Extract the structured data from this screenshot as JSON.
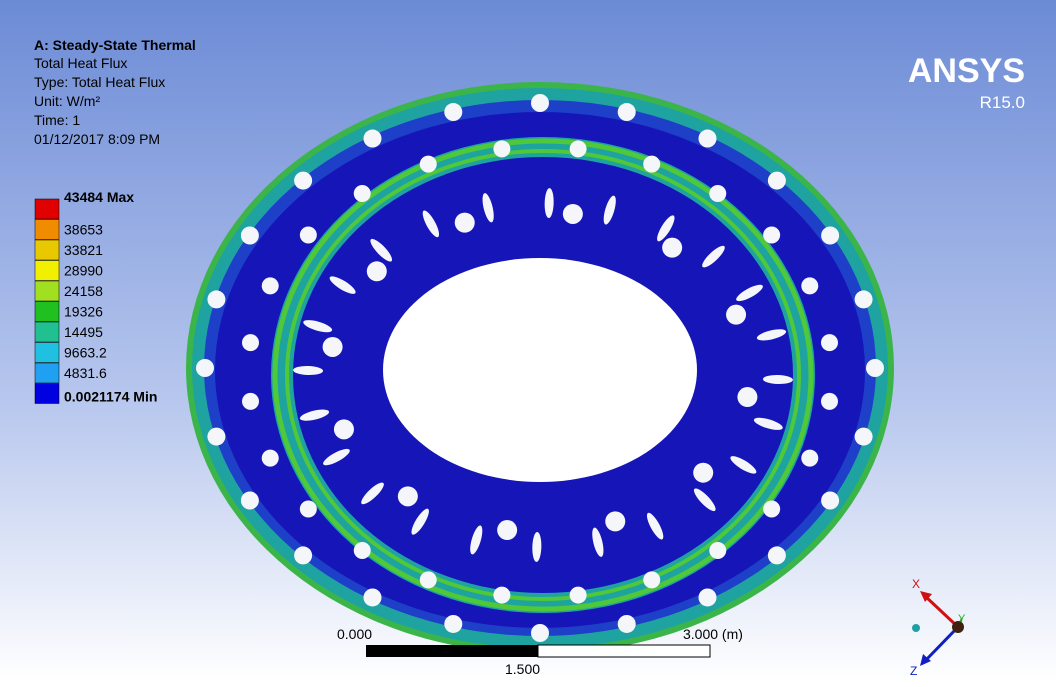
{
  "header": {
    "title": "A: Steady-State Thermal",
    "lines": [
      "Total Heat Flux",
      "Type: Total Heat Flux",
      "Unit: W/m²",
      "Time: 1",
      "01/12/2017 8:09 PM"
    ]
  },
  "legend": {
    "labels": [
      "43484 Max",
      "38653",
      "33821",
      "28990",
      "24158",
      "19326",
      "14495",
      "9663.2",
      "4831.6",
      "0.0021174 Min"
    ]
  },
  "logo": {
    "name": "ANSYS",
    "version": "R15.0"
  },
  "scale_bar": {
    "labels": [
      "0.000",
      "3.000 (m)",
      "1.500"
    ]
  },
  "triad": {
    "x": "X",
    "y": "Y",
    "z": "Z"
  }
}
